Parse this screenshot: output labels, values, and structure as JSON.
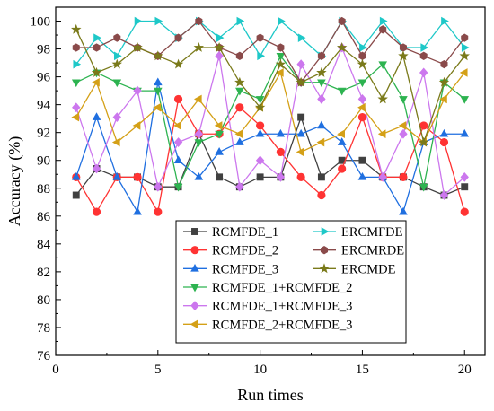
{
  "chart_data": {
    "type": "line",
    "xlabel": "Run times",
    "ylabel": "Accuracy (%)",
    "xlim": [
      0,
      21
    ],
    "ylim": [
      76,
      101
    ],
    "xticks": [
      0,
      5,
      10,
      15,
      20
    ],
    "yticks": [
      76,
      78,
      80,
      82,
      84,
      86,
      88,
      90,
      92,
      94,
      96,
      98,
      100
    ],
    "grid": false,
    "legend_position": "bottom-center",
    "x": [
      1,
      2,
      3,
      4,
      5,
      6,
      7,
      8,
      9,
      10,
      11,
      12,
      13,
      14,
      15,
      16,
      17,
      18,
      19,
      20
    ],
    "series": [
      {
        "name": "RCMFDE_1",
        "color": "#404040",
        "marker": "square",
        "values": [
          87.5,
          89.4,
          88.8,
          88.8,
          88.1,
          88.1,
          91.9,
          88.8,
          88.1,
          88.8,
          88.8,
          93.1,
          88.8,
          90.0,
          90.0,
          88.8,
          88.8,
          88.1,
          87.5,
          88.1
        ]
      },
      {
        "name": "RCMFDE_2",
        "color": "#ff3333",
        "marker": "circle",
        "values": [
          88.8,
          86.3,
          88.8,
          88.8,
          86.3,
          94.4,
          91.9,
          91.9,
          93.8,
          92.5,
          90.6,
          88.8,
          87.5,
          89.4,
          93.1,
          88.8,
          88.8,
          92.5,
          91.3,
          86.3
        ]
      },
      {
        "name": "RCMFDE_3",
        "color": "#1f6fe0",
        "marker": "triangle-up",
        "values": [
          88.8,
          93.1,
          88.8,
          86.3,
          95.6,
          90.0,
          88.8,
          90.6,
          91.3,
          91.9,
          91.9,
          91.9,
          92.5,
          91.3,
          88.8,
          88.8,
          86.3,
          91.3,
          91.9,
          91.9
        ]
      },
      {
        "name": "RCMFDE_1+RCMFDE_2",
        "color": "#2db350",
        "marker": "triangle-down",
        "values": [
          95.6,
          96.3,
          95.6,
          95.0,
          95.0,
          88.1,
          91.3,
          91.9,
          95.0,
          94.4,
          97.5,
          95.6,
          95.6,
          95.0,
          95.6,
          96.9,
          94.4,
          88.1,
          95.6,
          94.4
        ]
      },
      {
        "name": "RCMFDE_1+RCMFDE_3",
        "color": "#cc77ee",
        "marker": "diamond",
        "values": [
          93.8,
          89.4,
          93.1,
          95.0,
          88.1,
          91.3,
          91.9,
          97.5,
          88.1,
          90.0,
          88.8,
          96.9,
          94.4,
          98.1,
          94.4,
          88.8,
          91.9,
          96.3,
          87.5,
          88.8
        ]
      },
      {
        "name": "RCMFDE_2+RCMFDE_3",
        "color": "#d4a017",
        "marker": "triangle-left",
        "values": [
          93.1,
          95.6,
          91.3,
          92.5,
          93.8,
          92.5,
          94.4,
          92.5,
          91.9,
          93.8,
          96.3,
          90.6,
          91.3,
          91.9,
          93.8,
          91.9,
          92.5,
          91.3,
          94.4,
          96.3
        ]
      },
      {
        "name": "ERCMFDE",
        "color": "#1ec8c8",
        "marker": "triangle-right",
        "values": [
          96.9,
          98.8,
          97.5,
          100.0,
          100.0,
          98.8,
          100.0,
          98.8,
          100.0,
          97.5,
          100.0,
          98.8,
          97.5,
          100.0,
          98.1,
          100.0,
          98.1,
          98.1,
          100.0,
          98.1
        ]
      },
      {
        "name": "ERCMRDE",
        "color": "#8a4a4a",
        "marker": "hexagon",
        "values": [
          98.1,
          98.1,
          98.8,
          98.1,
          97.5,
          98.8,
          100.0,
          98.1,
          97.5,
          98.8,
          98.1,
          95.6,
          97.5,
          100.0,
          97.5,
          99.4,
          98.1,
          97.5,
          96.9,
          98.8
        ]
      },
      {
        "name": "ERCMDE",
        "color": "#7a7a1a",
        "marker": "star",
        "values": [
          99.4,
          96.3,
          96.9,
          98.1,
          97.5,
          96.9,
          98.1,
          98.1,
          95.6,
          93.8,
          96.9,
          95.6,
          96.3,
          98.1,
          96.9,
          94.4,
          97.5,
          91.3,
          95.6,
          97.5
        ]
      }
    ]
  }
}
